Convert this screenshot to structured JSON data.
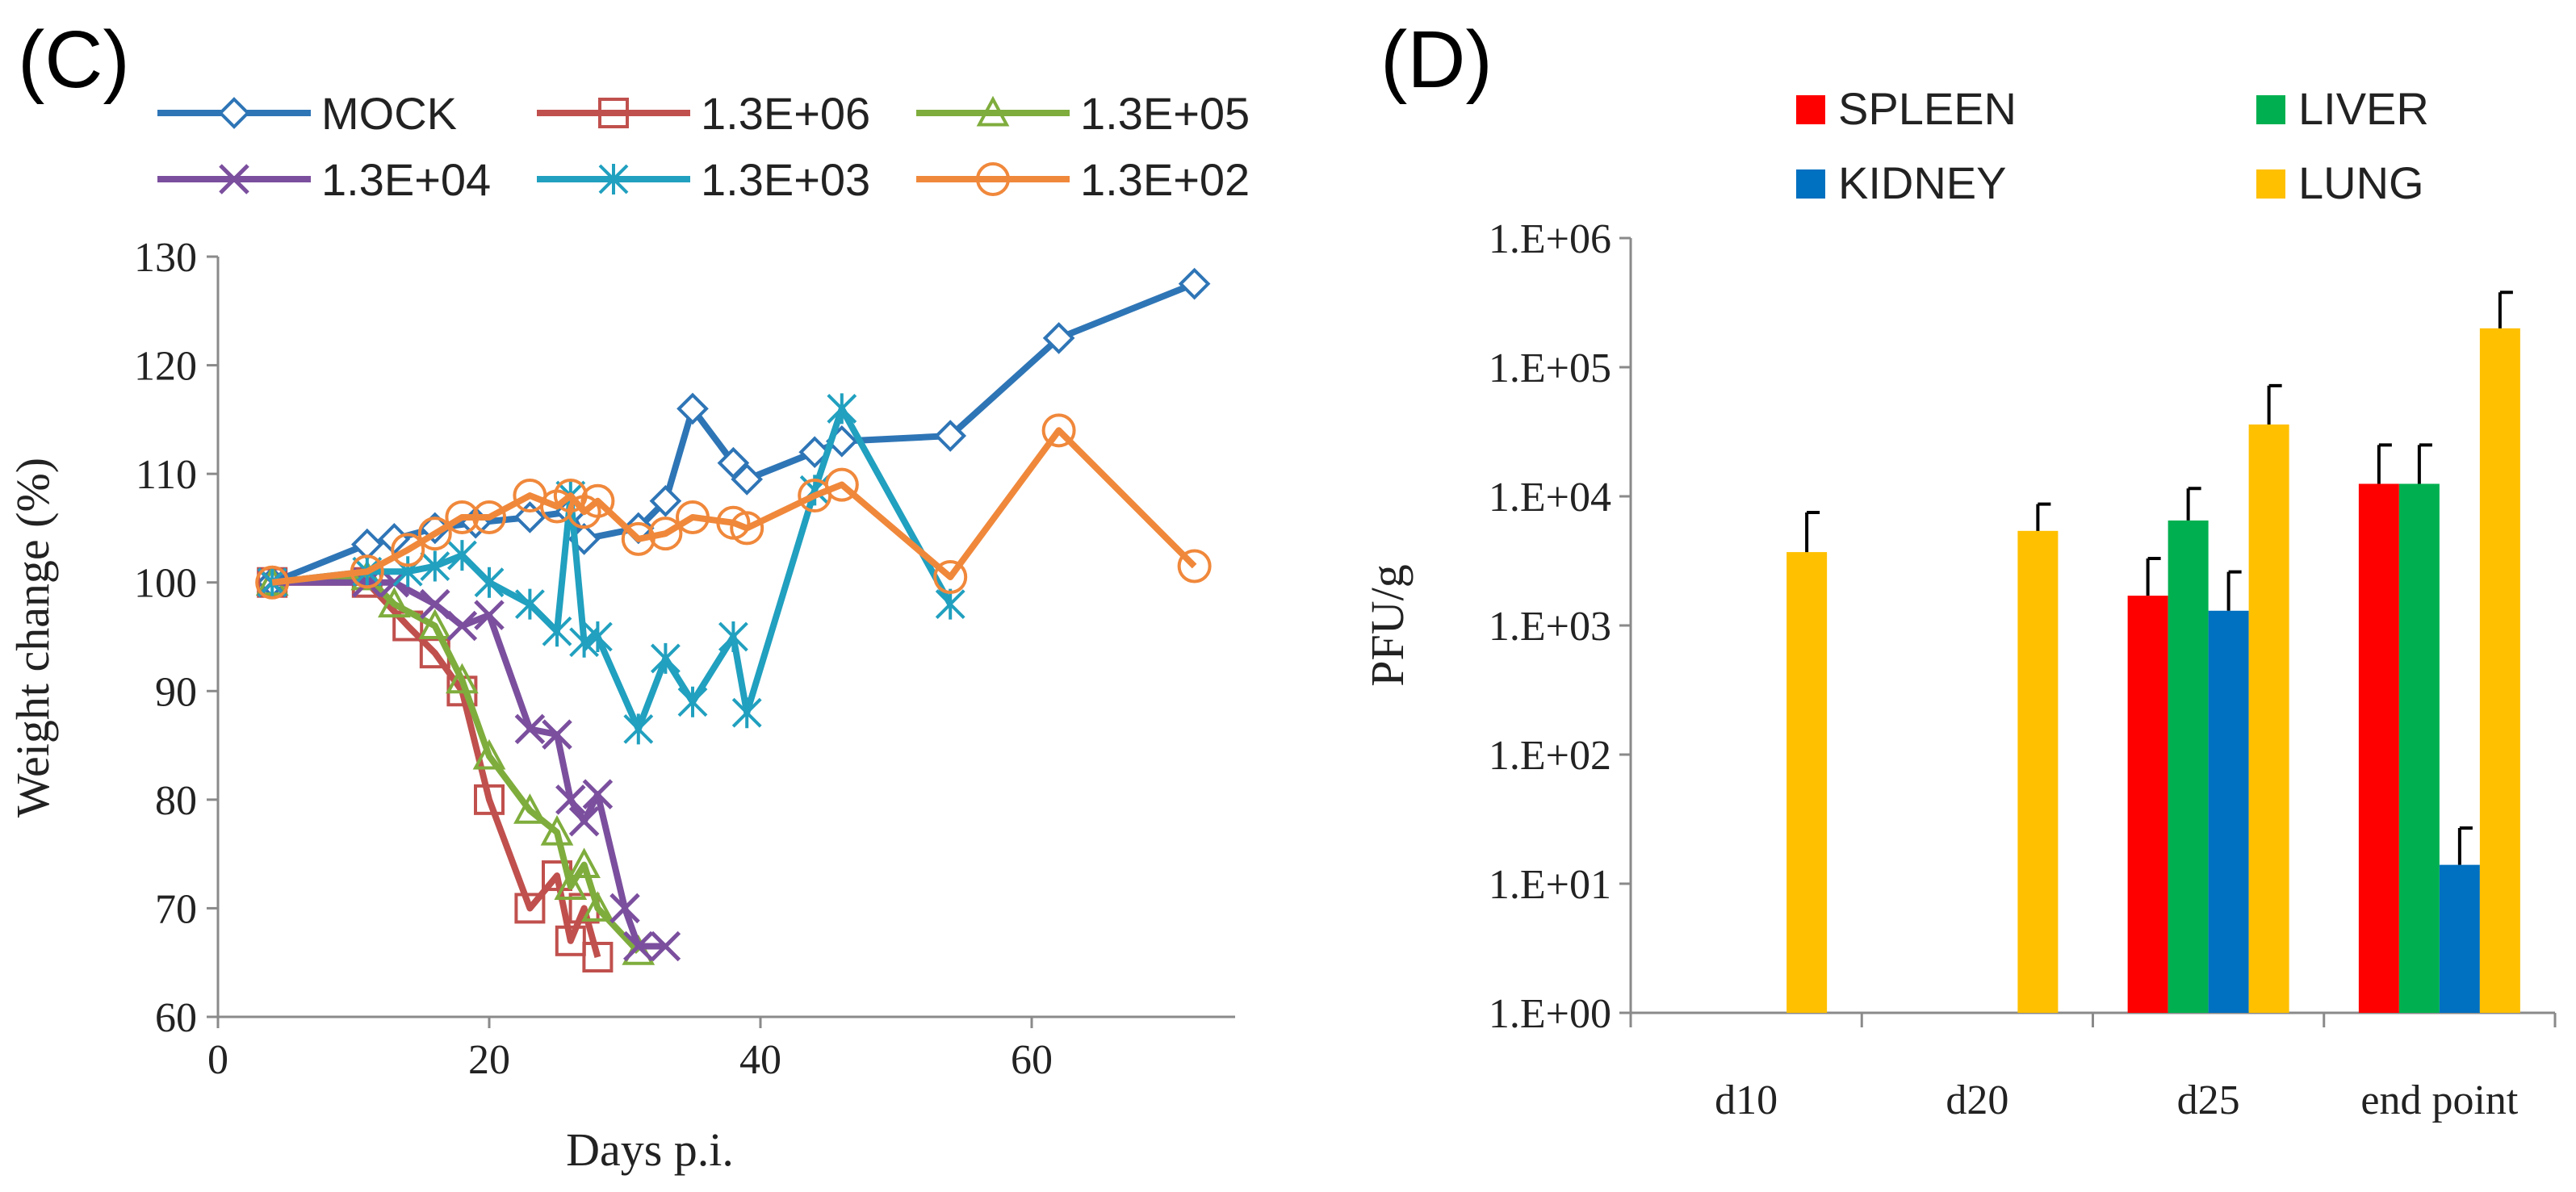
{
  "chart_data": [
    {
      "id": "C",
      "type": "line",
      "panel_label": "(C)",
      "xlabel": "Days p.i.",
      "ylabel": "Weight change (%)",
      "xlim": [
        0,
        75
      ],
      "ylim": [
        60,
        130
      ],
      "x_ticks": [
        "0",
        "20",
        "40",
        "60"
      ],
      "y_ticks": [
        "60",
        "70",
        "80",
        "90",
        "100",
        "110",
        "120",
        "130"
      ],
      "legend_position": "top",
      "series": [
        {
          "name": "MOCK",
          "color": "#2e75b6",
          "marker": "diamond",
          "x": [
            4,
            11,
            13,
            16,
            19,
            23,
            26,
            27,
            31,
            33,
            35,
            38,
            39,
            44,
            46,
            54,
            62,
            72
          ],
          "y": [
            100,
            103.5,
            104,
            105,
            105.5,
            106,
            106.5,
            104,
            105,
            107.5,
            116,
            111,
            109.5,
            112,
            113,
            113.5,
            122.5,
            127.5
          ]
        },
        {
          "name": "1.3E+06",
          "color": "#c0504d",
          "marker": "square",
          "x": [
            4,
            11,
            14,
            16,
            18,
            20,
            23,
            25,
            26,
            27,
            28
          ],
          "y": [
            100,
            100,
            96,
            93.5,
            90,
            80,
            70,
            73,
            67,
            70,
            65.5
          ]
        },
        {
          "name": "1.3E+05",
          "color": "#7fad3d",
          "marker": "triangle",
          "x": [
            4,
            11,
            13,
            16,
            18,
            20,
            23,
            25,
            26,
            27,
            28,
            31
          ],
          "y": [
            100,
            100.5,
            98,
            96,
            91,
            84,
            79,
            77,
            72,
            74,
            70,
            66
          ]
        },
        {
          "name": "1.3E+04",
          "color": "#7b4f9e",
          "marker": "x",
          "x": [
            4,
            11,
            13,
            16,
            18,
            20,
            23,
            25,
            26,
            27,
            28,
            30,
            31,
            33
          ],
          "y": [
            100,
            100,
            100,
            98,
            96,
            97,
            86.5,
            86,
            80,
            78,
            80.5,
            70,
            66.5,
            66.5
          ]
        },
        {
          "name": "1.3E+03",
          "color": "#21a0bf",
          "marker": "asterisk",
          "x": [
            4,
            11,
            14,
            16,
            18,
            20,
            23,
            25,
            26,
            27,
            28,
            31,
            33,
            35,
            38,
            39,
            44,
            46,
            54
          ],
          "y": [
            100,
            101,
            101,
            101.5,
            102.5,
            100,
            98,
            95.5,
            108,
            94.5,
            95,
            86.5,
            93,
            89,
            95,
            88,
            108.5,
            116,
            98
          ]
        },
        {
          "name": "1.3E+02",
          "color": "#f0883b",
          "marker": "circle",
          "x": [
            4,
            11,
            14,
            16,
            18,
            20,
            23,
            25,
            26,
            27,
            28,
            31,
            33,
            35,
            38,
            39,
            44,
            46,
            54,
            62,
            72
          ],
          "y": [
            100,
            101,
            103,
            104.5,
            106,
            106,
            108,
            107,
            108,
            106.5,
            107.5,
            104,
            104.5,
            106,
            105.5,
            105,
            108,
            109,
            100.5,
            114,
            101.5
          ]
        }
      ]
    },
    {
      "id": "D",
      "type": "bar",
      "panel_label": "(D)",
      "ylabel": "PFU/g",
      "yscale": "log",
      "ylim": [
        1,
        1000000
      ],
      "y_ticks": [
        "1.E+00",
        "1.E+01",
        "1.E+02",
        "1.E+03",
        "1.E+04",
        "1.E+05",
        "1.E+06"
      ],
      "categories": [
        "d10",
        "d20",
        "d25",
        "end point"
      ],
      "legend_position": "top",
      "series": [
        {
          "name": "SPLEEN",
          "color": "#ff0000",
          "values": [
            null,
            null,
            1700,
            12500
          ],
          "error_upper": [
            null,
            null,
            3300,
            25000
          ]
        },
        {
          "name": "LIVER",
          "color": "#00b050",
          "values": [
            null,
            null,
            6500,
            12500
          ],
          "error_upper": [
            null,
            null,
            11500,
            25000
          ]
        },
        {
          "name": "KIDNEY",
          "color": "#0070c0",
          "values": [
            null,
            null,
            1300,
            14
          ],
          "error_upper": [
            null,
            null,
            2600,
            27
          ]
        },
        {
          "name": "LUNG",
          "color": "#ffc000",
          "values": [
            3700,
            5400,
            36000,
            200000
          ],
          "error_upper": [
            7500,
            8700,
            72000,
            380000
          ]
        }
      ]
    }
  ]
}
